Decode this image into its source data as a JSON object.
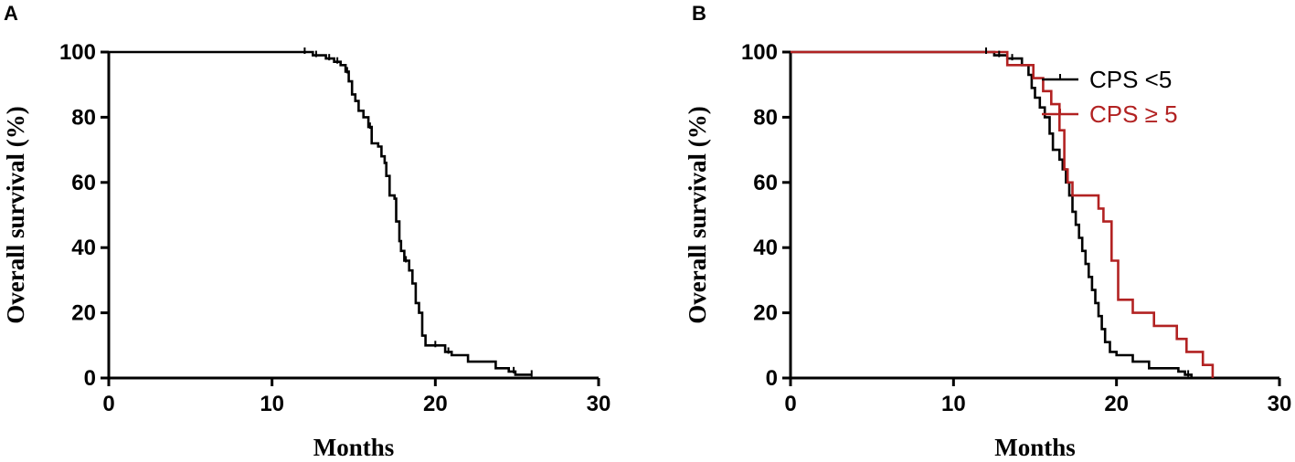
{
  "chart_data": [
    {
      "panel": "A",
      "type": "line",
      "xlabel": "Months",
      "ylabel": "Overall survival (%)",
      "xlim": [
        0,
        30
      ],
      "ylim": [
        0,
        100
      ],
      "xticks": [
        0,
        10,
        20,
        30
      ],
      "yticks": [
        0,
        20,
        40,
        60,
        80,
        100
      ],
      "grid": false,
      "series": [
        {
          "color": "#000000",
          "step": true,
          "points": [
            [
              0,
              100
            ],
            [
              11.8,
              100
            ],
            [
              12.5,
              99
            ],
            [
              13.3,
              98
            ],
            [
              13.8,
              97
            ],
            [
              14.2,
              96
            ],
            [
              14.5,
              94
            ],
            [
              14.7,
              91
            ],
            [
              14.9,
              87
            ],
            [
              15.1,
              85
            ],
            [
              15.3,
              82
            ],
            [
              15.6,
              80
            ],
            [
              15.9,
              77
            ],
            [
              16.1,
              72
            ],
            [
              16.5,
              71
            ],
            [
              16.7,
              68
            ],
            [
              16.9,
              66
            ],
            [
              17.0,
              62
            ],
            [
              17.2,
              56
            ],
            [
              17.5,
              55
            ],
            [
              17.6,
              48
            ],
            [
              17.8,
              42
            ],
            [
              17.9,
              39
            ],
            [
              18.1,
              36
            ],
            [
              18.4,
              33
            ],
            [
              18.6,
              29
            ],
            [
              18.8,
              23
            ],
            [
              19.0,
              20
            ],
            [
              19.2,
              13
            ],
            [
              19.4,
              10
            ],
            [
              20.3,
              10
            ],
            [
              20.6,
              8
            ],
            [
              21.0,
              7
            ],
            [
              22.0,
              5
            ],
            [
              23.7,
              3
            ],
            [
              24.5,
              2
            ],
            [
              24.9,
              1
            ],
            [
              25.9,
              1
            ]
          ]
        }
      ],
      "censor_marks": [
        [
          12.0,
          100
        ],
        [
          12.7,
          99
        ],
        [
          13.5,
          98
        ],
        [
          14.0,
          97
        ],
        [
          14.6,
          94
        ],
        [
          16.0,
          77
        ],
        [
          18.2,
          36
        ],
        [
          20.0,
          10
        ],
        [
          20.8,
          8
        ],
        [
          24.8,
          2
        ],
        [
          25.9,
          1
        ]
      ]
    },
    {
      "panel": "B",
      "type": "line",
      "xlabel": "Months",
      "ylabel": "Overall survival (%)",
      "xlim": [
        0,
        30
      ],
      "ylim": [
        0,
        100
      ],
      "xticks": [
        0,
        10,
        20,
        30
      ],
      "yticks": [
        0,
        20,
        40,
        60,
        80,
        100
      ],
      "grid": false,
      "legend": "top-right",
      "series": [
        {
          "name": "CPS <5",
          "color": "#000000",
          "step": true,
          "points": [
            [
              0,
              100
            ],
            [
              11.8,
              100
            ],
            [
              12.5,
              99
            ],
            [
              13.3,
              98
            ],
            [
              14.2,
              96
            ],
            [
              14.6,
              93
            ],
            [
              14.8,
              89
            ],
            [
              15.0,
              86
            ],
            [
              15.3,
              83
            ],
            [
              15.6,
              80
            ],
            [
              15.9,
              75
            ],
            [
              16.1,
              70
            ],
            [
              16.5,
              67
            ],
            [
              16.7,
              64
            ],
            [
              16.9,
              60
            ],
            [
              17.1,
              56
            ],
            [
              17.3,
              51
            ],
            [
              17.5,
              47
            ],
            [
              17.7,
              43
            ],
            [
              17.9,
              39
            ],
            [
              18.1,
              35
            ],
            [
              18.3,
              31
            ],
            [
              18.5,
              27
            ],
            [
              18.7,
              23
            ],
            [
              18.9,
              19
            ],
            [
              19.1,
              15
            ],
            [
              19.3,
              11
            ],
            [
              19.6,
              8
            ],
            [
              20.0,
              7
            ],
            [
              21.0,
              5
            ],
            [
              22.0,
              3
            ],
            [
              23.8,
              2
            ],
            [
              24.2,
              1
            ],
            [
              24.6,
              0
            ]
          ]
        },
        {
          "name": "CPS ≥ 5",
          "color": "#b22222",
          "step": true,
          "points": [
            [
              0,
              100
            ],
            [
              13.2,
              100
            ],
            [
              13.3,
              96
            ],
            [
              14.8,
              96
            ],
            [
              14.9,
              92
            ],
            [
              15.4,
              92
            ],
            [
              15.5,
              88
            ],
            [
              15.9,
              88
            ],
            [
              16.0,
              84
            ],
            [
              16.4,
              84
            ],
            [
              16.5,
              76
            ],
            [
              16.7,
              76
            ],
            [
              16.8,
              64
            ],
            [
              16.9,
              64
            ],
            [
              17.0,
              60
            ],
            [
              17.2,
              60
            ],
            [
              17.3,
              56
            ],
            [
              18.8,
              56
            ],
            [
              18.9,
              52
            ],
            [
              19.1,
              52
            ],
            [
              19.2,
              48
            ],
            [
              19.6,
              48
            ],
            [
              19.7,
              36
            ],
            [
              20.0,
              36
            ],
            [
              20.1,
              24
            ],
            [
              20.9,
              24
            ],
            [
              21.0,
              20
            ],
            [
              22.2,
              20
            ],
            [
              22.3,
              16
            ],
            [
              23.6,
              16
            ],
            [
              23.7,
              12
            ],
            [
              24.2,
              12
            ],
            [
              24.3,
              8
            ],
            [
              25.2,
              8
            ],
            [
              25.3,
              4
            ],
            [
              25.8,
              4
            ],
            [
              25.9,
              0
            ]
          ]
        }
      ],
      "censor_marks": [
        [
          12.0,
          100,
          "#000000"
        ],
        [
          12.8,
          99,
          "#000000"
        ],
        [
          13.6,
          98,
          "#000000"
        ],
        [
          24.4,
          1,
          "#000000"
        ]
      ]
    }
  ]
}
